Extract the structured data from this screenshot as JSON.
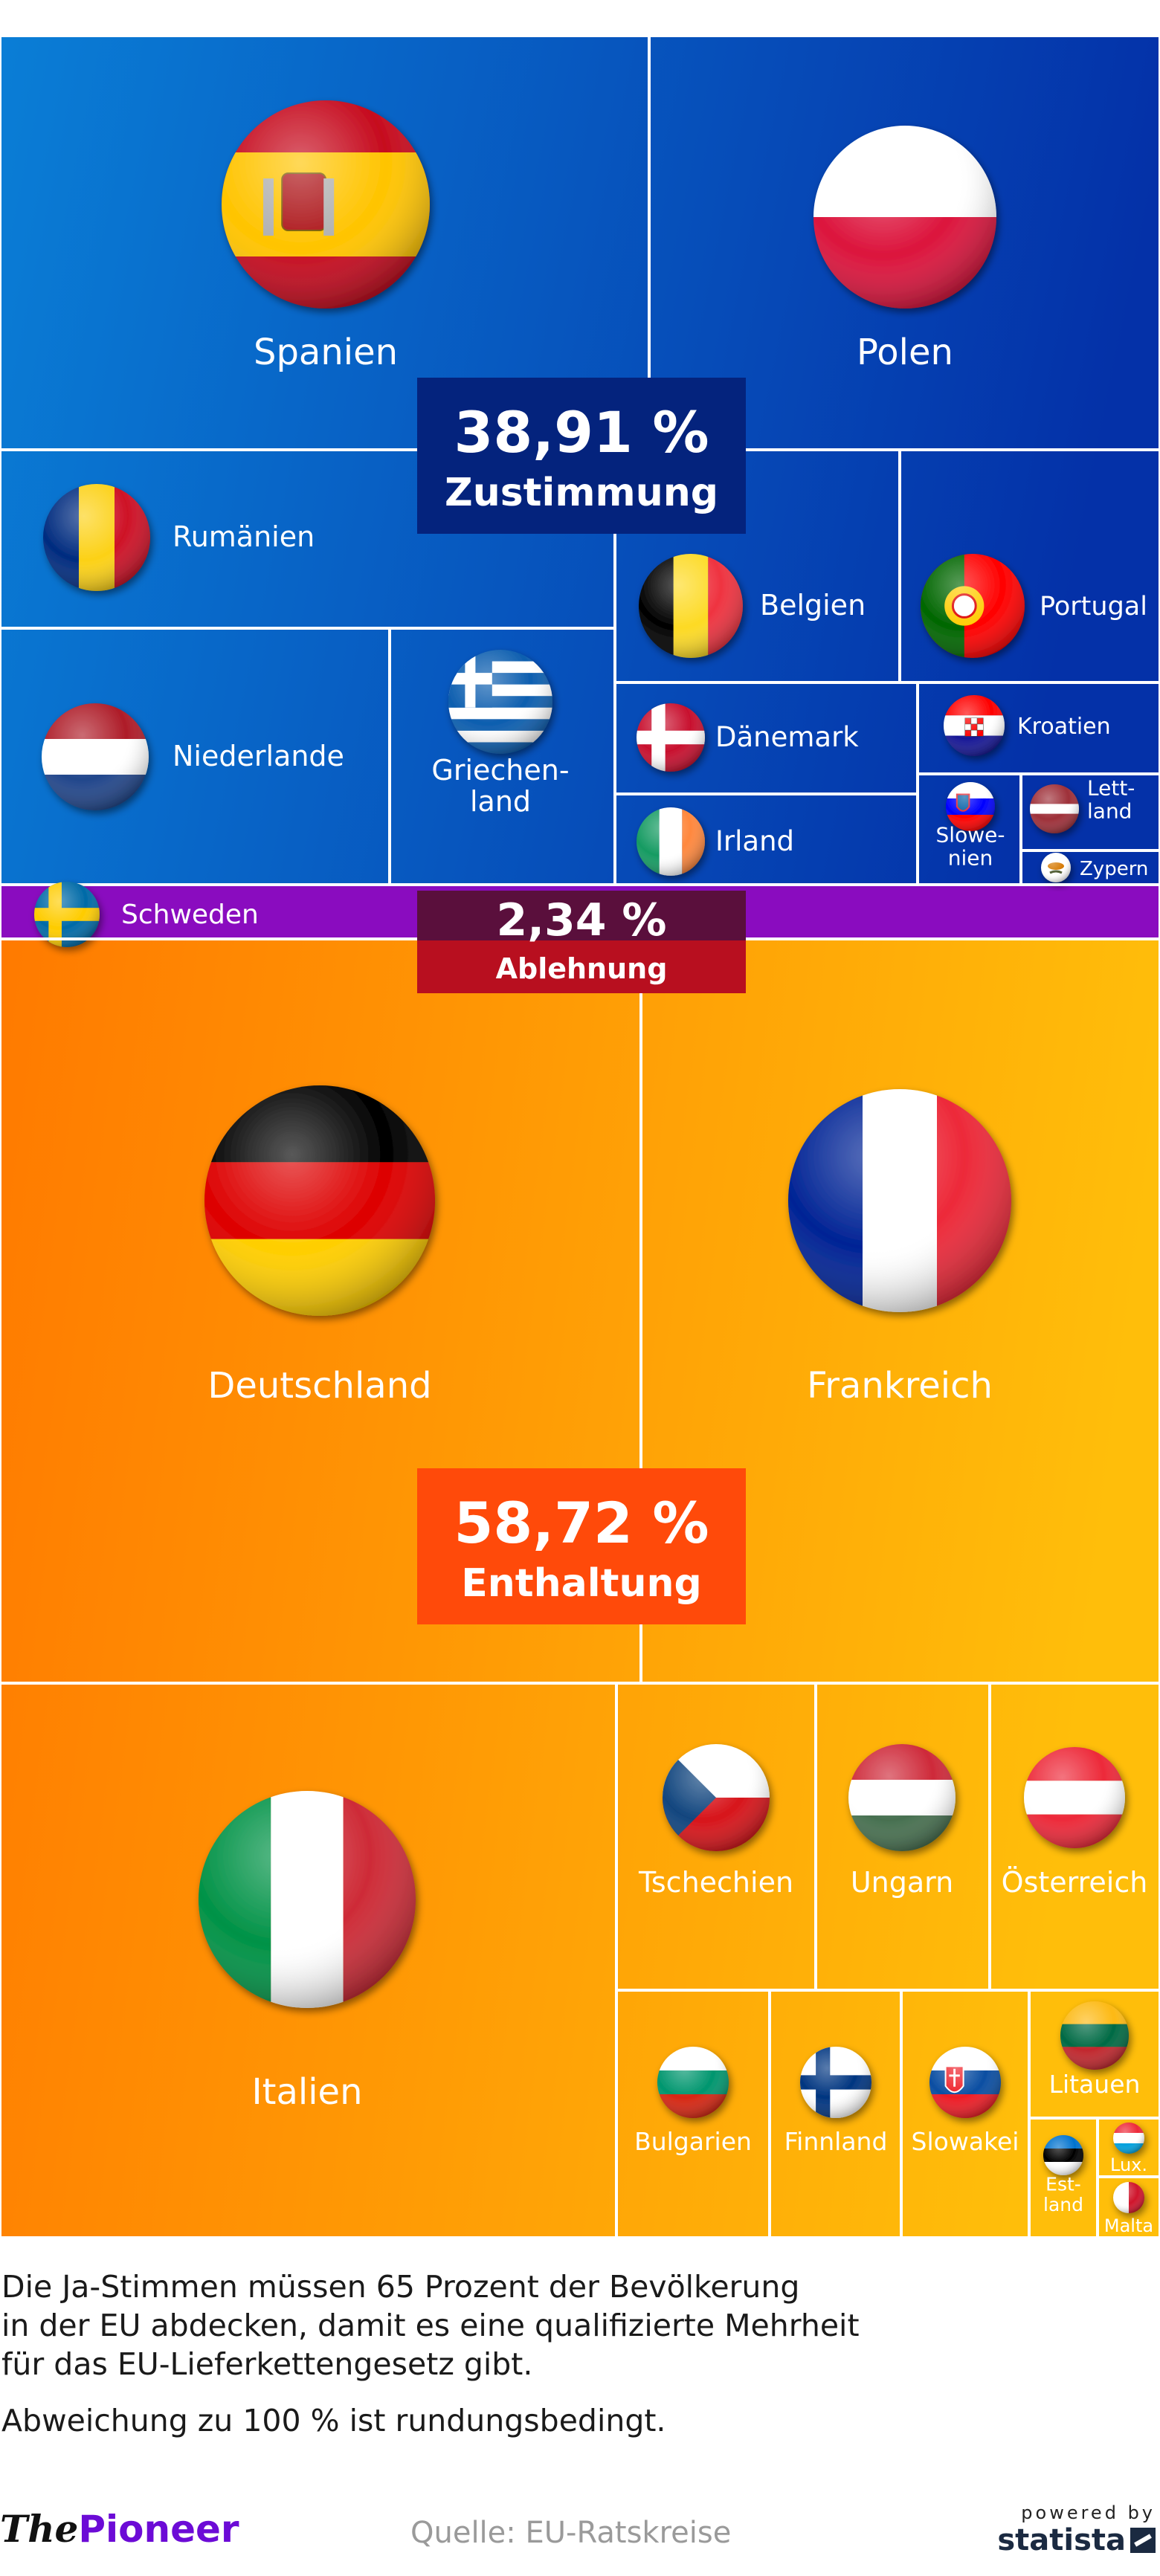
{
  "chart_data": {
    "type": "treemap",
    "title": "",
    "groups": [
      {
        "name": "Zustimmung",
        "percent_label": "38,91 %",
        "value": 38.91,
        "color_from": "#0a7ed6",
        "color_to": "#0431a8",
        "countries": [
          {
            "name": "Spanien",
            "label": "Spanien",
            "flag": "spain-flag"
          },
          {
            "name": "Polen",
            "label": "Polen",
            "flag": "poland-flag"
          },
          {
            "name": "Rumänien",
            "label": "Rumänien",
            "flag": "romania-flag"
          },
          {
            "name": "Belgien",
            "label": "Belgien",
            "flag": "belgium-flag"
          },
          {
            "name": "Portugal",
            "label": "Portugal",
            "flag": "portugal-flag"
          },
          {
            "name": "Niederlande",
            "label": "Niederlande",
            "flag": "netherlands-flag"
          },
          {
            "name": "Griechenland",
            "label": "Griechen-\nland",
            "flag": "greece-flag"
          },
          {
            "name": "Dänemark",
            "label": "Dänemark",
            "flag": "denmark-flag"
          },
          {
            "name": "Kroatien",
            "label": "Kroatien",
            "flag": "croatia-flag"
          },
          {
            "name": "Irland",
            "label": "Irland",
            "flag": "ireland-flag"
          },
          {
            "name": "Slowenien",
            "label": "Slowe-\nnien",
            "flag": "slovenia-flag"
          },
          {
            "name": "Lettland",
            "label": "Lett-\nland",
            "flag": "latvia-flag"
          },
          {
            "name": "Zypern",
            "label": "Zypern",
            "flag": "cyprus-flag"
          }
        ]
      },
      {
        "name": "Ablehnung",
        "percent_label": "2,34 %",
        "value": 2.34,
        "color_from": "#8a0cbf",
        "color_to": "#8a0cbf",
        "countries": [
          {
            "name": "Schweden",
            "label": "Schweden",
            "flag": "sweden-flag"
          }
        ]
      },
      {
        "name": "Enthaltung",
        "percent_label": "58,72 %",
        "value": 58.72,
        "color_from": "#ff7a00",
        "color_to": "#ffbe0a",
        "countries": [
          {
            "name": "Deutschland",
            "label": "Deutschland",
            "flag": "germany-flag"
          },
          {
            "name": "Frankreich",
            "label": "Frankreich",
            "flag": "france-flag"
          },
          {
            "name": "Italien",
            "label": "Italien",
            "flag": "italy-flag"
          },
          {
            "name": "Tschechien",
            "label": "Tschechien",
            "flag": "czechia-flag"
          },
          {
            "name": "Ungarn",
            "label": "Ungarn",
            "flag": "hungary-flag"
          },
          {
            "name": "Österreich",
            "label": "Österreich",
            "flag": "austria-flag"
          },
          {
            "name": "Bulgarien",
            "label": "Bulgarien",
            "flag": "bulgaria-flag"
          },
          {
            "name": "Finnland",
            "label": "Finnland",
            "flag": "finland-flag"
          },
          {
            "name": "Slowakei",
            "label": "Slowakei",
            "flag": "slovakia-flag"
          },
          {
            "name": "Litauen",
            "label": "Litauen",
            "flag": "lithuania-flag"
          },
          {
            "name": "Estland",
            "label": "Est-\nland",
            "flag": "estonia-flag"
          },
          {
            "name": "Luxemburg",
            "label": "Lux.",
            "flag": "luxembourg-flag"
          },
          {
            "name": "Malta",
            "label": "Malta",
            "flag": "malta-flag"
          }
        ]
      }
    ]
  },
  "footnotes": {
    "note1": "Die Ja-Stimmen müssen 65 Prozent der Bevölkerung\nin der EU abdecken, damit es eine qualifizierte Mehrheit\nfür das EU-Lieferkettengesetz gibt.",
    "note2": "Abweichung zu 100 % ist rundungsbedingt."
  },
  "footer": {
    "brand_the": "The",
    "brand_pioneer": "Pioneer",
    "source": "Quelle: EU-Ratskreise",
    "powered_by": "powered by",
    "statista": "statista"
  },
  "colors": {
    "yes_badge": "#04237d",
    "no_badge": "#b80f1f",
    "abstain_badge": "#ff4a0a"
  }
}
